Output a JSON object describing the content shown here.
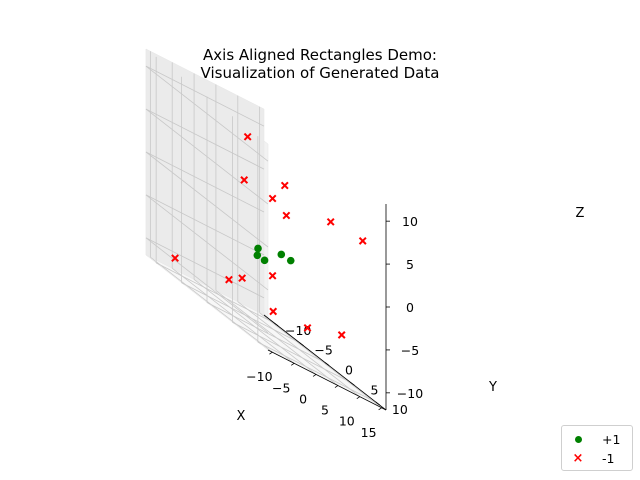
{
  "chart_data": {
    "type": "scatter",
    "title": "Axis Aligned Rectangles Demo:",
    "subtitle": "Visualization of Generated Data",
    "xlabel": "X",
    "ylabel": "Y",
    "zlabel": "Z",
    "xlim": [
      -11,
      16
    ],
    "ylim": [
      -12,
      12
    ],
    "zlim": [
      -12,
      12
    ],
    "xticks": [
      -10,
      -5,
      0,
      5,
      10,
      15
    ],
    "yticks": [
      -10,
      -5,
      0,
      5,
      10
    ],
    "zticks": [
      -10,
      -5,
      0,
      5,
      10
    ],
    "grid": true,
    "legend_position": "lower-right",
    "series": [
      {
        "name": "+1",
        "marker": "circle",
        "color": "#008000",
        "points": [
          [
            3,
            -2,
            -3
          ],
          [
            4,
            -3,
            -4
          ],
          [
            4.5,
            -2,
            -4
          ],
          [
            6,
            0,
            -2
          ],
          [
            7,
            1,
            -2
          ]
        ]
      },
      {
        "name": "-1",
        "marker": "x",
        "color": "#ff0000",
        "points": [
          [
            -11,
            8,
            11
          ],
          [
            -6,
            11,
            8
          ],
          [
            -9,
            -8,
            -10
          ],
          [
            -4,
            7,
            -8
          ],
          [
            1,
            -3,
            4
          ],
          [
            4,
            0,
            4
          ],
          [
            6,
            1,
            3
          ],
          [
            4,
            0,
            -5
          ],
          [
            1,
            -6,
            -9
          ],
          [
            8,
            8,
            6
          ],
          [
            12,
            0,
            -9
          ],
          [
            13,
            10,
            6
          ],
          [
            14,
            5,
            -7
          ],
          [
            11,
            -12,
            -9
          ]
        ]
      }
    ]
  }
}
